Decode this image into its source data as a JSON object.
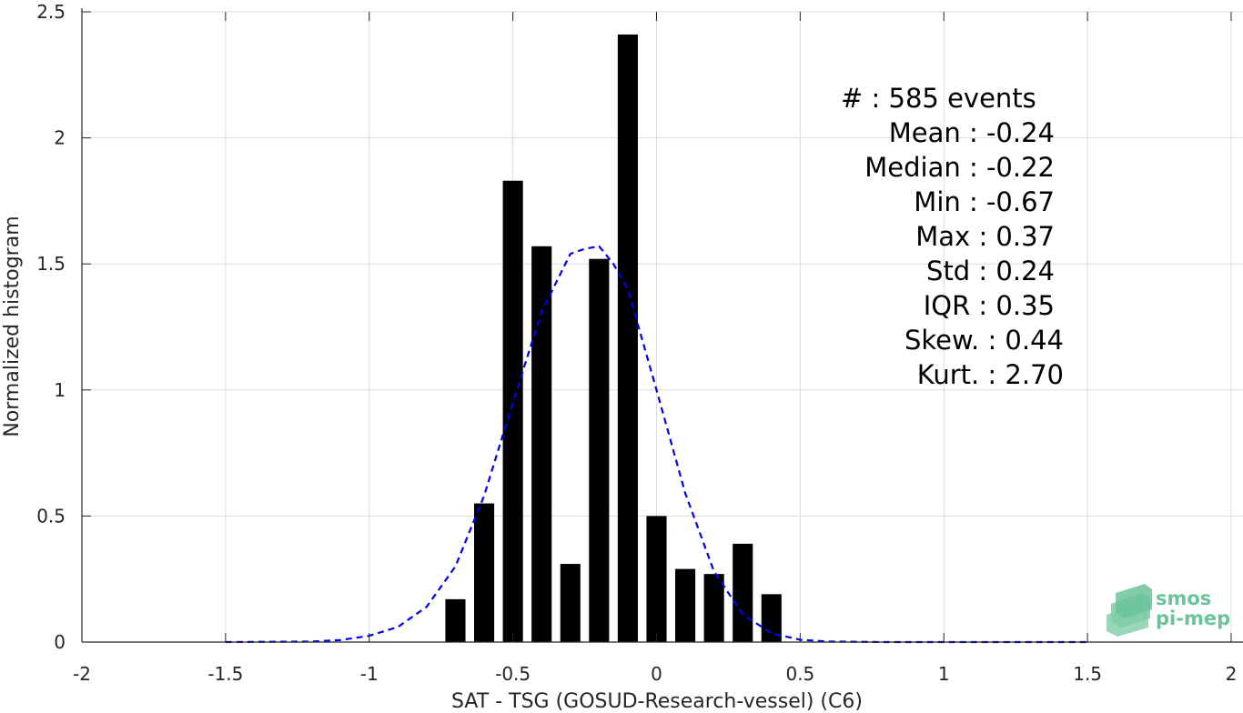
{
  "chart_data": {
    "type": "bar",
    "xlabel": "SAT - TSG (GOSUD-Research-vessel) (C6)",
    "ylabel": "Normalized histogram",
    "xlim": [
      -2,
      2
    ],
    "ylim": [
      0,
      2.5
    ],
    "xticks": [
      -2,
      -1.5,
      -1,
      -0.5,
      0,
      0.5,
      1,
      1.5,
      2
    ],
    "xtick_labels": [
      "-2",
      "-1.5",
      "-1",
      "-0.5",
      "0",
      "0.5",
      "1",
      "1.5",
      "2"
    ],
    "yticks": [
      0,
      0.5,
      1,
      1.5,
      2,
      2.5
    ],
    "ytick_labels": [
      "0",
      "0.5",
      "1",
      "1.5",
      "2",
      "2.5"
    ],
    "grid": true,
    "bar_width": 0.07,
    "bars": [
      {
        "x": -0.7,
        "y": 0.17
      },
      {
        "x": -0.6,
        "y": 0.55
      },
      {
        "x": -0.5,
        "y": 1.83
      },
      {
        "x": -0.4,
        "y": 1.57
      },
      {
        "x": -0.3,
        "y": 0.31
      },
      {
        "x": -0.2,
        "y": 1.52
      },
      {
        "x": -0.1,
        "y": 2.41
      },
      {
        "x": 0.0,
        "y": 0.5
      },
      {
        "x": 0.1,
        "y": 0.29
      },
      {
        "x": 0.2,
        "y": 0.27
      },
      {
        "x": 0.3,
        "y": 0.39
      },
      {
        "x": 0.4,
        "y": 0.19
      }
    ],
    "fit_curve": {
      "style": "dashed",
      "color": "#0000ee",
      "x": [
        -1.5,
        -1.2,
        -1.1,
        -1.0,
        -0.9,
        -0.8,
        -0.7,
        -0.6,
        -0.5,
        -0.4,
        -0.3,
        -0.25,
        -0.2,
        -0.15,
        -0.1,
        0.0,
        0.1,
        0.2,
        0.3,
        0.4,
        0.5,
        0.6,
        0.8,
        1.0,
        1.5
      ],
      "y": [
        0.0,
        0.002,
        0.008,
        0.025,
        0.06,
        0.14,
        0.3,
        0.58,
        0.95,
        1.31,
        1.54,
        1.56,
        1.57,
        1.5,
        1.4,
        1.0,
        0.59,
        0.28,
        0.11,
        0.035,
        0.009,
        0.002,
        0.0,
        0.0,
        0.0
      ]
    },
    "bar_color": "#000000"
  },
  "stats": [
    {
      "label": "#  : 585 events",
      "align": "start"
    },
    {
      "label": "Mean : -0.24",
      "align": "end"
    },
    {
      "label": "Median : -0.22",
      "align": "end"
    },
    {
      "label": "Min : -0.67",
      "align": "end"
    },
    {
      "label": "Max : 0.37",
      "align": "end"
    },
    {
      "label": "Std : 0.24",
      "align": "end"
    },
    {
      "label": "IQR : 0.35",
      "align": "end"
    },
    {
      "label": "Skew. : 0.44",
      "align": "end2"
    },
    {
      "label": "Kurt. : 2.70",
      "align": "end2"
    }
  ],
  "logo": {
    "line1": "smos",
    "line2": "pi-mep",
    "color": "#6cc39a"
  }
}
